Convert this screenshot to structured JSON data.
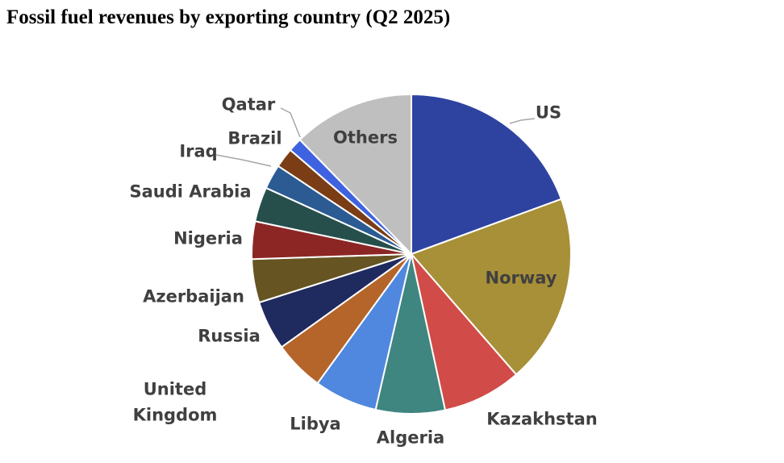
{
  "chart_data": {
    "type": "pie",
    "title": "Fossil fuel revenues by exporting country (Q2 2025)",
    "categories": [
      "US",
      "Norway",
      "Kazakhstan",
      "Algeria",
      "Libya",
      "United Kingdom",
      "Russia",
      "Azerbaijan",
      "Nigeria",
      "Saudi Arabia",
      "Iraq",
      "Brazil",
      "Qatar",
      "Others"
    ],
    "values": [
      19.4,
      19.2,
      8,
      7,
      6.4,
      5.1,
      5,
      4.4,
      3.8,
      3.5,
      2.5,
      2,
      1.4,
      12.3
    ],
    "colors": [
      "#2e43a0",
      "#a89038",
      "#d14c48",
      "#3f8580",
      "#4f88de",
      "#b5652a",
      "#1f2a5e",
      "#665423",
      "#8c2624",
      "#264f4c",
      "#2c5b93",
      "#7a3d15",
      "#3f63e0",
      "#bfbfbf"
    ]
  }
}
